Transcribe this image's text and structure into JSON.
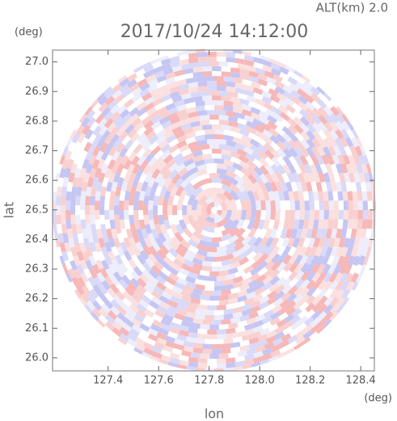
{
  "chart_data": {
    "type": "radar_ppi",
    "title": "2017/10/24 14:12:00",
    "subtitle": "ALT(km) 2.0",
    "x_label": "lon",
    "y_label": "lat",
    "x_unit": "(deg)",
    "y_unit": "(deg)",
    "xlim": [
      127.18,
      128.454
    ],
    "ylim": [
      25.956,
      27.04
    ],
    "xticks": [
      {
        "value": 127.4,
        "label": "127.4"
      },
      {
        "value": 127.6,
        "label": "127.6"
      },
      {
        "value": 127.8,
        "label": "127.8"
      },
      {
        "value": 128.0,
        "label": "128.0"
      },
      {
        "value": 128.2,
        "label": "128.2"
      },
      {
        "value": 128.4,
        "label": "128.4"
      }
    ],
    "yticks": [
      {
        "value": 26.0,
        "label": "26.0"
      },
      {
        "value": 26.1,
        "label": "26.1"
      },
      {
        "value": 26.2,
        "label": "26.2"
      },
      {
        "value": 26.3,
        "label": "26.3"
      },
      {
        "value": 26.4,
        "label": "26.4"
      },
      {
        "value": 26.5,
        "label": "26.5"
      },
      {
        "value": 26.6,
        "label": "26.6"
      },
      {
        "value": 26.7,
        "label": "26.7"
      },
      {
        "value": 26.8,
        "label": "26.8"
      },
      {
        "value": 26.9,
        "label": "26.9"
      },
      {
        "value": 27.0,
        "label": "27.0"
      }
    ]
  }
}
